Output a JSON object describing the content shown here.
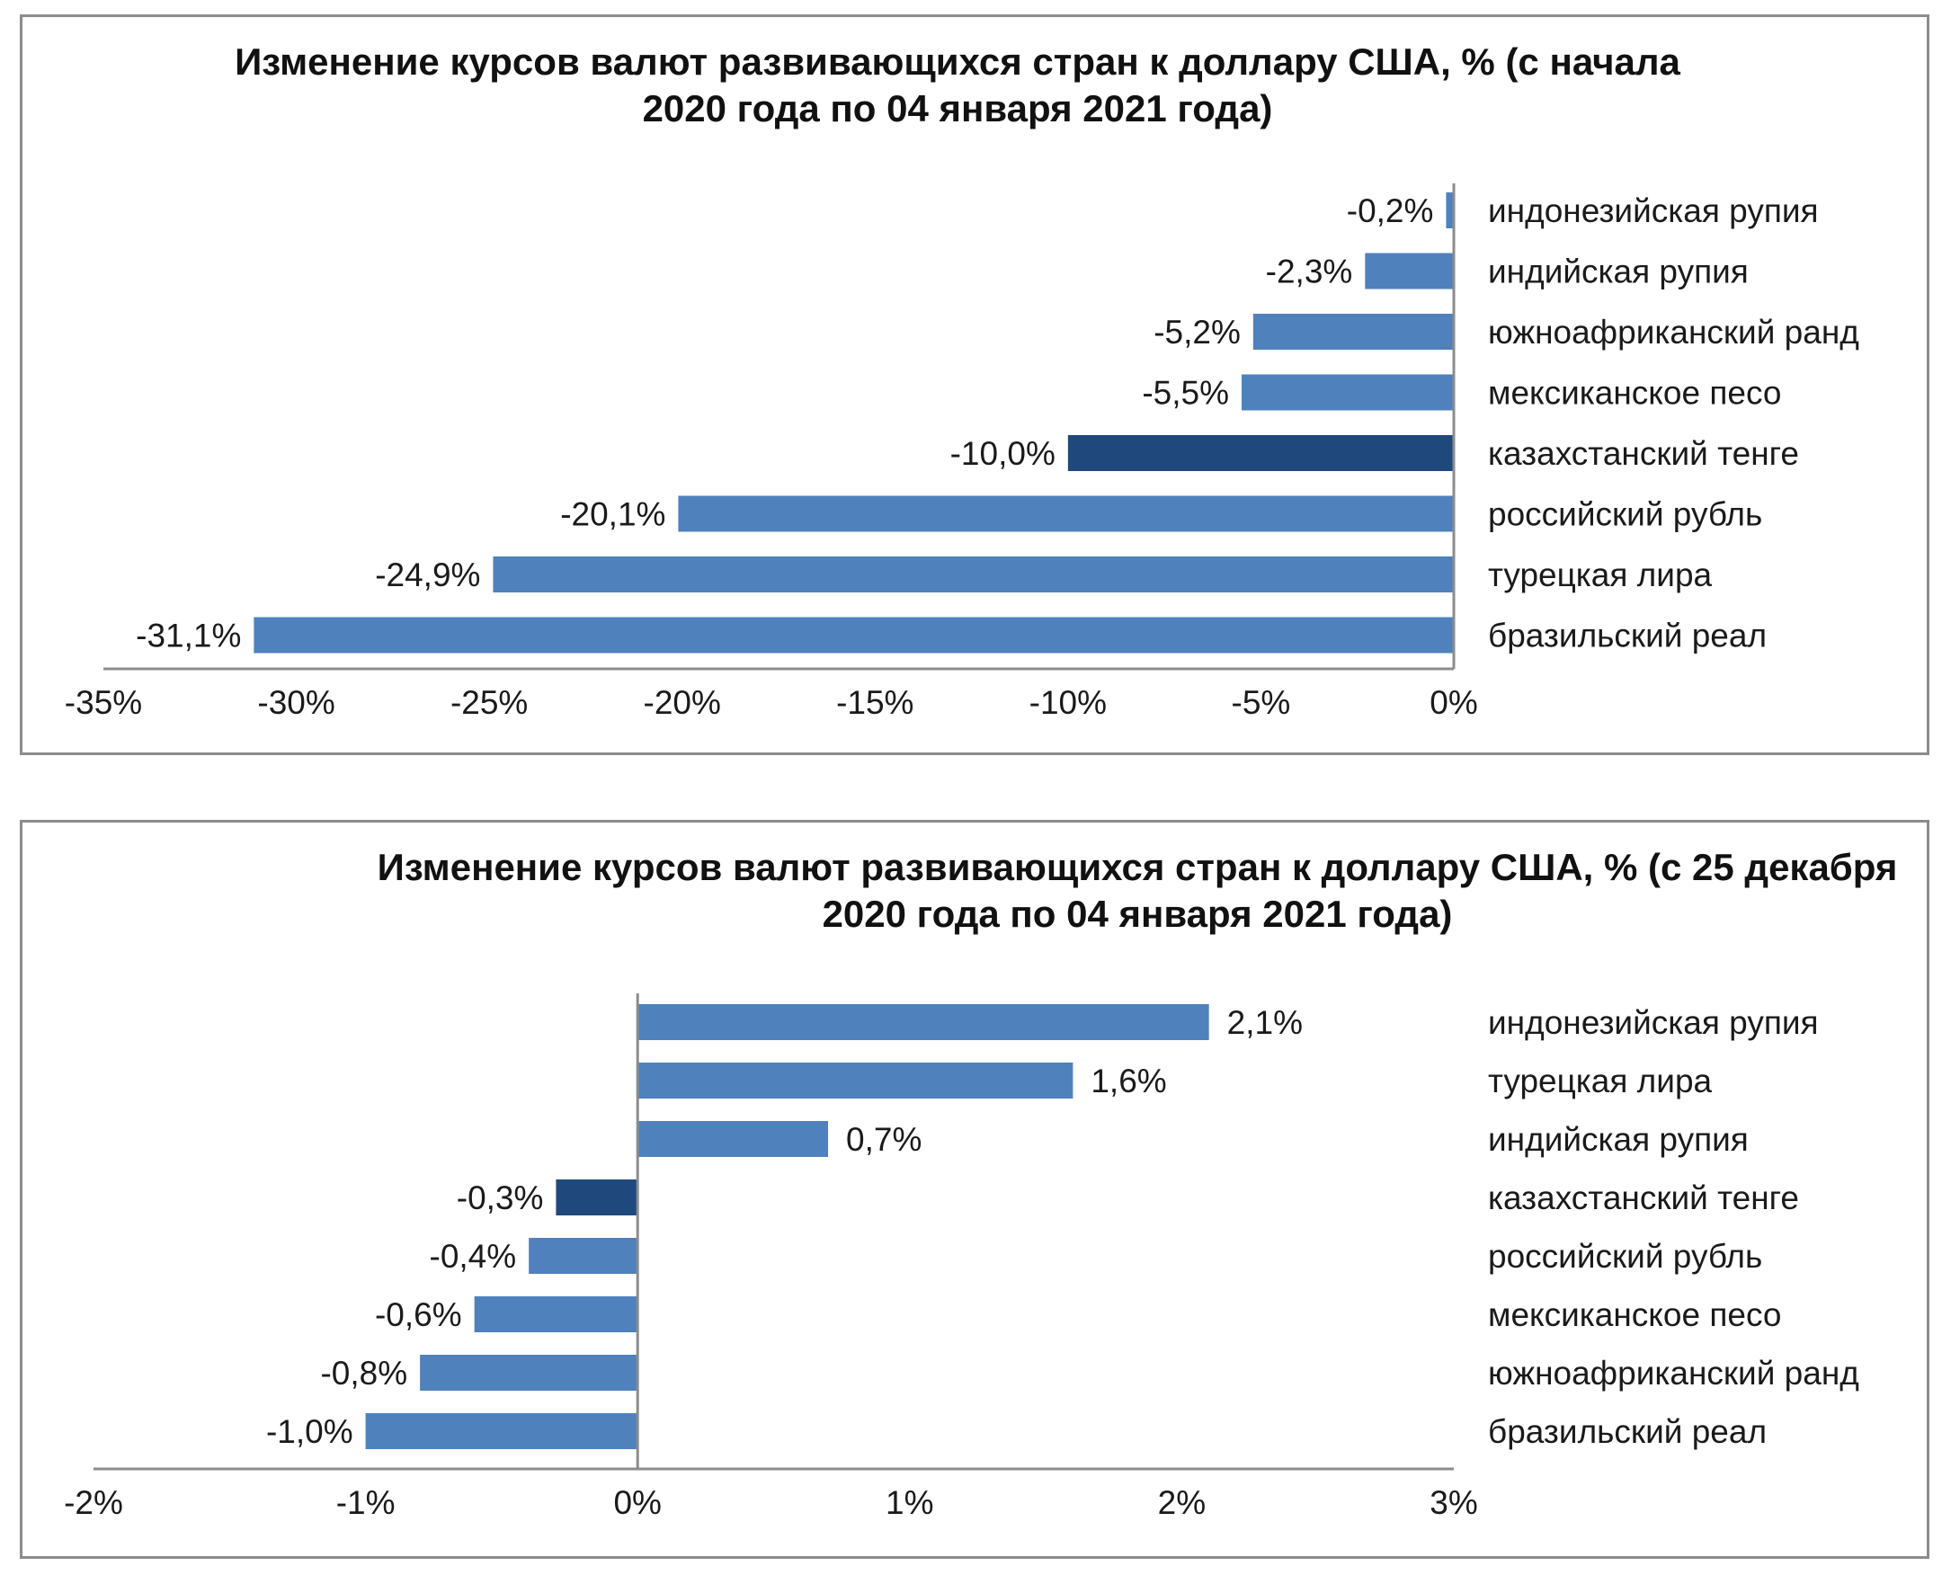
{
  "colors": {
    "bar": "#4f81bd",
    "highlight": "#1f497d",
    "axis": "#8c8c8c"
  },
  "chart_data": [
    {
      "type": "bar",
      "orientation": "horizontal",
      "title": "Изменение курсов валют развивающихся стран к доллару США, % (с начала 2020 года по 04 января 2021 года)",
      "categories": [
        "индонезийская рупия",
        "индийская рупия",
        "южноафриканский ранд",
        "мексиканское песо",
        "казахстанский тенге",
        "российский рубль",
        "турецкая лира",
        "бразильский реал"
      ],
      "values": [
        -0.2,
        -2.3,
        -5.2,
        -5.5,
        -10.0,
        -20.1,
        -24.9,
        -31.1
      ],
      "data_labels": [
        "-0,2%",
        "-2,3%",
        "-5,2%",
        "-5,5%",
        "-10,0%",
        "-20,1%",
        "-24,9%",
        "-31,1%"
      ],
      "highlight": "казахстанский тенге",
      "xlim": [
        -35,
        0
      ],
      "xticks": [
        -35,
        -30,
        -25,
        -20,
        -15,
        -10,
        -5,
        0
      ],
      "xtick_labels": [
        "-35%",
        "-30%",
        "-25%",
        "-20%",
        "-15%",
        "-10%",
        "-5%",
        "0%"
      ],
      "grid": false,
      "legend": "none"
    },
    {
      "type": "bar",
      "orientation": "horizontal",
      "title": "Изменение курсов валют развивающихся стран к доллару США, % (с 25 декабря 2020 года по 04 января 2021 года)",
      "categories": [
        "индонезийская рупия",
        "турецкая лира",
        "индийская рупия",
        "казахстанский тенге",
        "российский рубль",
        "мексиканское песо",
        "южноафриканский ранд",
        "бразильский реал"
      ],
      "values": [
        2.1,
        1.6,
        0.7,
        -0.3,
        -0.4,
        -0.6,
        -0.8,
        -1.0
      ],
      "data_labels": [
        "2,1%",
        "1,6%",
        "0,7%",
        "-0,3%",
        "-0,4%",
        "-0,6%",
        "-0,8%",
        "-1,0%"
      ],
      "highlight": "казахстанский тенге",
      "xlim": [
        -2,
        3
      ],
      "xticks": [
        -2,
        -1,
        0,
        1,
        2,
        3
      ],
      "xtick_labels": [
        "-2%",
        "-1%",
        "0%",
        "1%",
        "2%",
        "3%"
      ],
      "grid": false,
      "legend": "none"
    }
  ]
}
